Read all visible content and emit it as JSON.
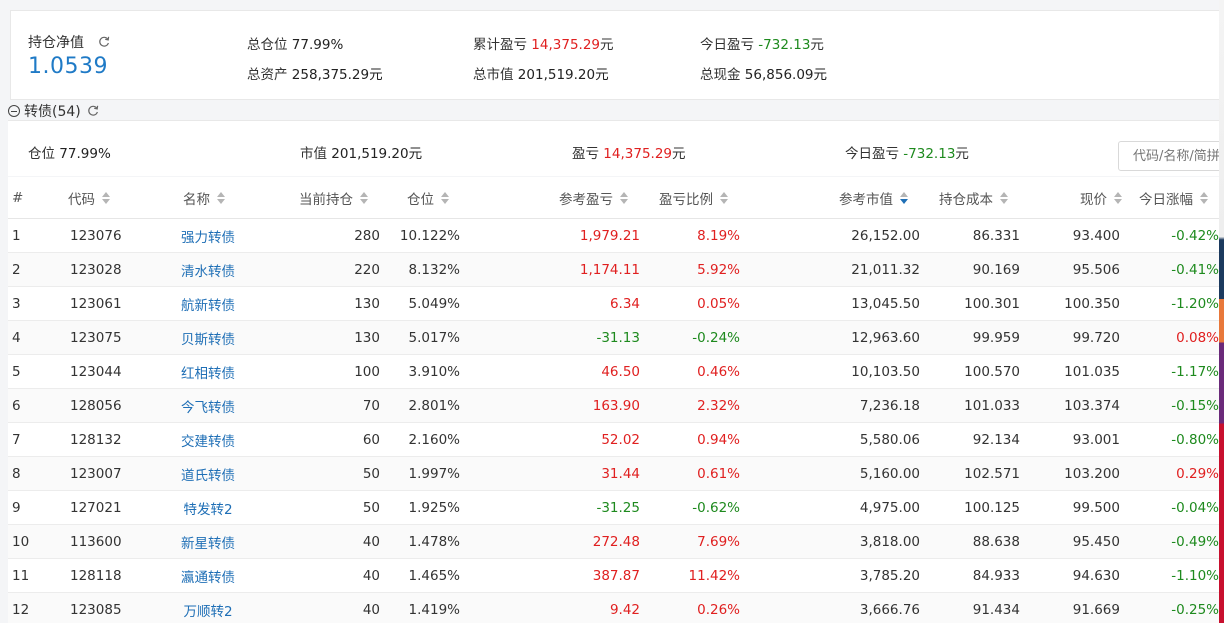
{
  "summary": {
    "nav_label": "持仓净值",
    "nav_value": "1.0539",
    "total_position_label": "总仓位",
    "total_position_value": "77.99%",
    "total_assets_label": "总资产",
    "total_assets_value": "258,375.29元",
    "cum_pnl_label": "累计盈亏",
    "cum_pnl_value": "14,375.29",
    "cum_pnl_unit": "元",
    "total_mv_label": "总市值",
    "total_mv_value": "201,519.20元",
    "today_pnl_label": "今日盈亏",
    "today_pnl_value": "-732.13",
    "today_pnl_unit": "元",
    "total_cash_label": "总现金",
    "total_cash_value": "56,856.09元"
  },
  "section": {
    "title": "转债(54)",
    "position_label": "仓位",
    "position_value": "77.99%",
    "mv_label": "市值",
    "mv_value": "201,519.20元",
    "pnl_label": "盈亏",
    "pnl_value": "14,375.29",
    "pnl_unit": "元",
    "today_pnl_label": "今日盈亏",
    "today_pnl_value": "-732.13",
    "today_pnl_unit": "元",
    "search_placeholder": "代码/名称/简拼"
  },
  "table": {
    "headers": {
      "idx": "#",
      "code": "代码",
      "name": "名称",
      "hold": "当前持仓",
      "pos": "仓位",
      "pnl": "参考盈亏",
      "pnl_ratio": "盈亏比例",
      "mv": "参考市值",
      "cost": "持仓成本",
      "price": "现价",
      "change": "今日涨幅"
    },
    "rows": [
      {
        "idx": "1",
        "code": "123076",
        "name": "强力转债",
        "hold": "280",
        "pos": "10.122%",
        "pnl": "1,979.21",
        "ratio": "8.19%",
        "mv": "26,152.00",
        "cost": "86.331",
        "price": "93.400",
        "change": "-0.42%"
      },
      {
        "idx": "2",
        "code": "123028",
        "name": "清水转债",
        "hold": "220",
        "pos": "8.132%",
        "pnl": "1,174.11",
        "ratio": "5.92%",
        "mv": "21,011.32",
        "cost": "90.169",
        "price": "95.506",
        "change": "-0.41%"
      },
      {
        "idx": "3",
        "code": "123061",
        "name": "航新转债",
        "hold": "130",
        "pos": "5.049%",
        "pnl": "6.34",
        "ratio": "0.05%",
        "mv": "13,045.50",
        "cost": "100.301",
        "price": "100.350",
        "change": "-1.20%"
      },
      {
        "idx": "4",
        "code": "123075",
        "name": "贝斯转债",
        "hold": "130",
        "pos": "5.017%",
        "pnl": "-31.13",
        "ratio": "-0.24%",
        "mv": "12,963.60",
        "cost": "99.959",
        "price": "99.720",
        "change": "0.08%"
      },
      {
        "idx": "5",
        "code": "123044",
        "name": "红相转债",
        "hold": "100",
        "pos": "3.910%",
        "pnl": "46.50",
        "ratio": "0.46%",
        "mv": "10,103.50",
        "cost": "100.570",
        "price": "101.035",
        "change": "-1.17%"
      },
      {
        "idx": "6",
        "code": "128056",
        "name": "今飞转债",
        "hold": "70",
        "pos": "2.801%",
        "pnl": "163.90",
        "ratio": "2.32%",
        "mv": "7,236.18",
        "cost": "101.033",
        "price": "103.374",
        "change": "-0.15%"
      },
      {
        "idx": "7",
        "code": "128132",
        "name": "交建转债",
        "hold": "60",
        "pos": "2.160%",
        "pnl": "52.02",
        "ratio": "0.94%",
        "mv": "5,580.06",
        "cost": "92.134",
        "price": "93.001",
        "change": "-0.80%"
      },
      {
        "idx": "8",
        "code": "123007",
        "name": "道氏转债",
        "hold": "50",
        "pos": "1.997%",
        "pnl": "31.44",
        "ratio": "0.61%",
        "mv": "5,160.00",
        "cost": "102.571",
        "price": "103.200",
        "change": "0.29%"
      },
      {
        "idx": "9",
        "code": "127021",
        "name": "特发转2",
        "hold": "50",
        "pos": "1.925%",
        "pnl": "-31.25",
        "ratio": "-0.62%",
        "mv": "4,975.00",
        "cost": "100.125",
        "price": "99.500",
        "change": "-0.04%"
      },
      {
        "idx": "10",
        "code": "113600",
        "name": "新星转债",
        "hold": "40",
        "pos": "1.478%",
        "pnl": "272.48",
        "ratio": "7.69%",
        "mv": "3,818.00",
        "cost": "88.638",
        "price": "95.450",
        "change": "-0.49%"
      },
      {
        "idx": "11",
        "code": "128118",
        "name": "瀛通转债",
        "hold": "40",
        "pos": "1.465%",
        "pnl": "387.87",
        "ratio": "11.42%",
        "mv": "3,785.20",
        "cost": "84.933",
        "price": "94.630",
        "change": "-1.10%"
      },
      {
        "idx": "12",
        "code": "123085",
        "name": "万顺转2",
        "hold": "40",
        "pos": "1.419%",
        "pnl": "9.42",
        "ratio": "0.26%",
        "mv": "3,666.76",
        "cost": "91.434",
        "price": "91.669",
        "change": "-0.25%"
      }
    ]
  },
  "colors": {
    "up": "#e02020",
    "down": "#1e8a1e",
    "link": "#1f6fb6",
    "nav": "#1f7ac6"
  },
  "icons": {
    "refresh": "refresh-icon",
    "collapse": "collapse-icon",
    "sort": "sort-icon"
  }
}
